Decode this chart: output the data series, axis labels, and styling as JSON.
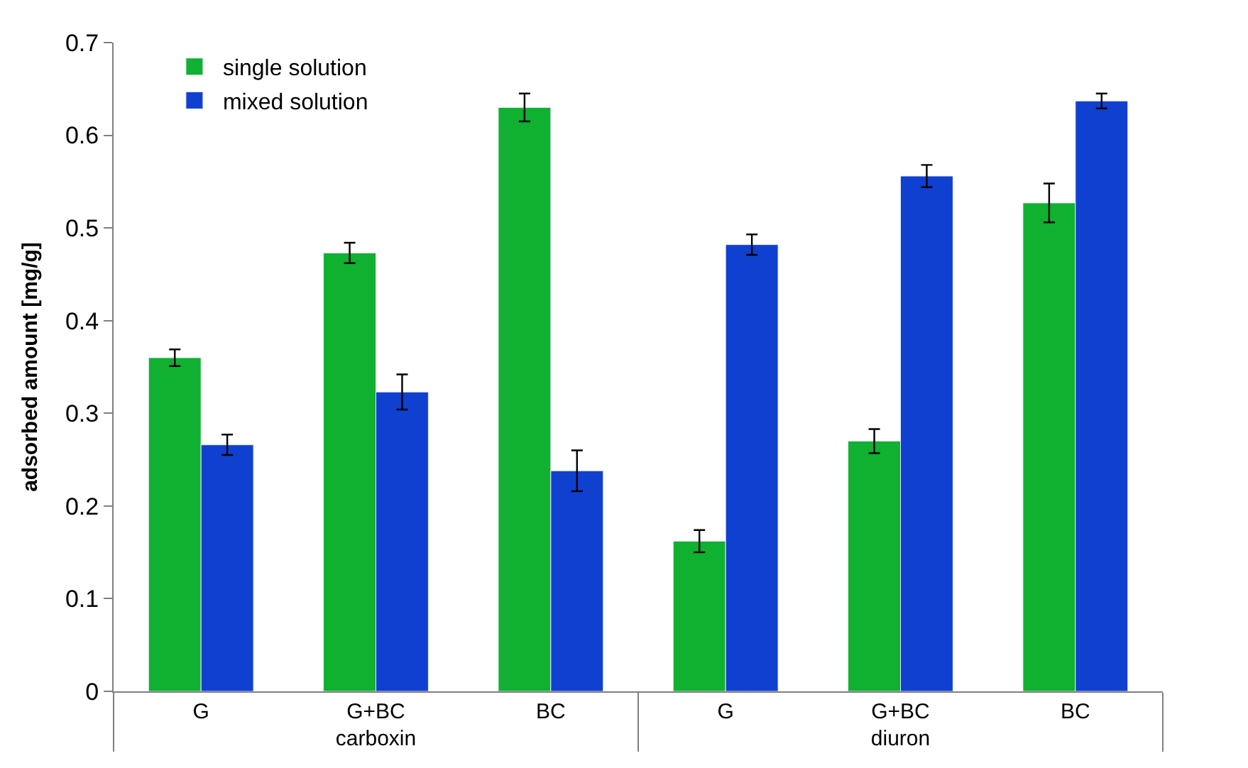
{
  "chart_data": {
    "type": "bar",
    "ylabel": "adsorbed amount [mg/g]",
    "categories": [
      "G",
      "G+BC",
      "BC",
      "G",
      "G+BC",
      "BC"
    ],
    "annotations": [
      "carboxin",
      "diuron"
    ],
    "series": [
      {
        "name": "single solution",
        "color": "#10b030",
        "values": [
          0.36,
          0.473,
          0.63,
          0.162,
          0.27,
          0.527
        ],
        "errors": [
          0.009,
          0.011,
          0.015,
          0.012,
          0.013,
          0.021
        ]
      },
      {
        "name": "mixed solution",
        "color": "#1040d0",
        "values": [
          0.266,
          0.323,
          0.238,
          0.482,
          0.556,
          0.637
        ],
        "errors": [
          0.011,
          0.019,
          0.022,
          0.011,
          0.012,
          0.008
        ]
      }
    ],
    "ylim": [
      0,
      0.7
    ],
    "yticks": [
      0,
      0.1,
      0.2,
      0.3,
      0.4,
      0.5,
      0.6,
      0.7
    ],
    "legend": "top left"
  }
}
